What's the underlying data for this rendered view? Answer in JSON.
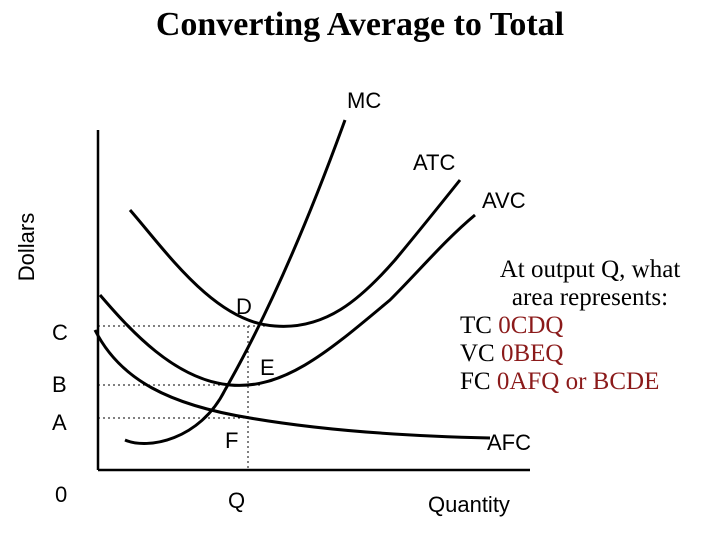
{
  "title": "Converting Average to Total",
  "axes": {
    "y_label": "Dollars",
    "x_label": "Quantity",
    "origin": "0",
    "q": "Q"
  },
  "price_levels": [
    "C",
    "B",
    "A"
  ],
  "curves": {
    "mc": "MC",
    "atc": "ATC",
    "avc": "AVC",
    "afc": "AFC"
  },
  "points": {
    "d": "D",
    "e": "E",
    "f": "F"
  },
  "question": {
    "line1": "At output Q, what",
    "line2": "area represents:",
    "rows": [
      {
        "label": "TC",
        "answer": "0CDQ"
      },
      {
        "label": "VC",
        "answer": "0BEQ"
      },
      {
        "label": "FC",
        "answer": "0AFQ or BCDE"
      }
    ]
  },
  "colors": {
    "answer": "#8b1a1a"
  }
}
